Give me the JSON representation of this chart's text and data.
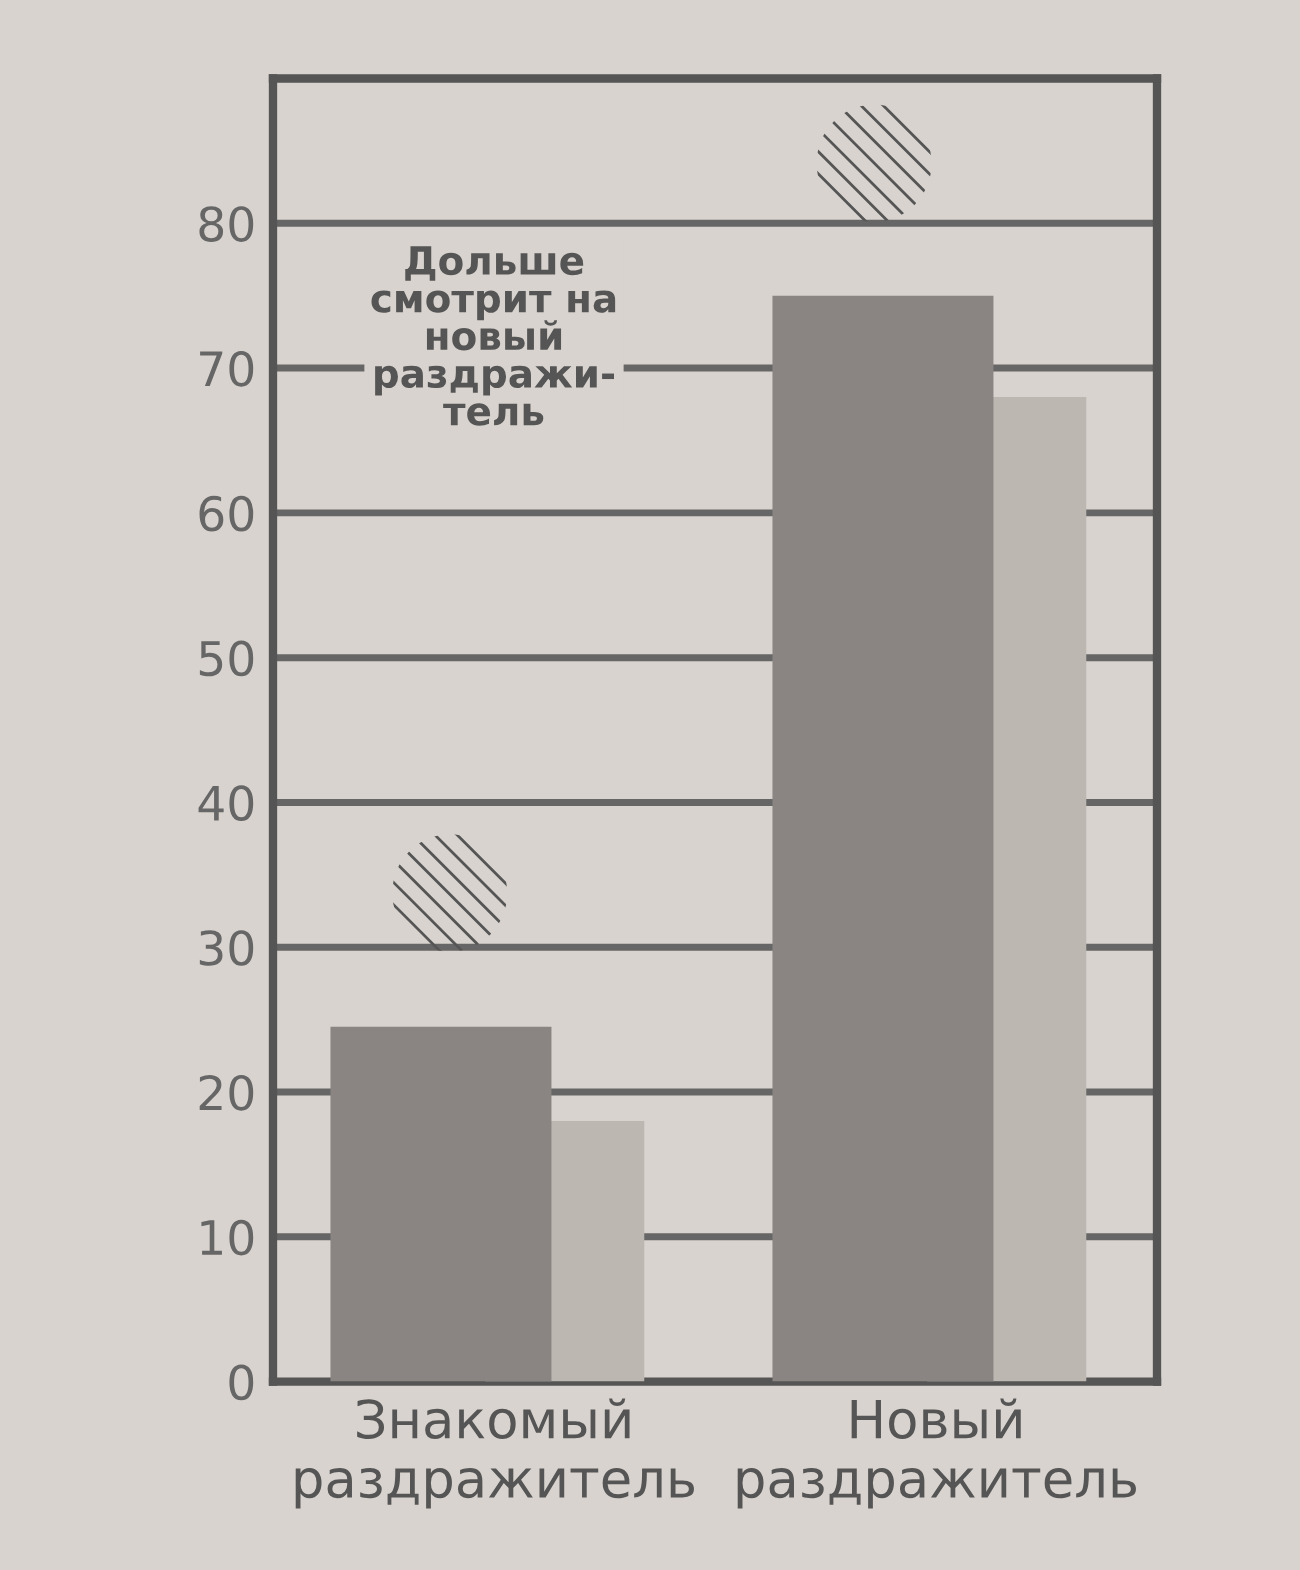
{
  "chart_data": {
    "type": "bar",
    "categories": [
      "Знакомый\nраздражитель",
      "Новый\nраздражитель"
    ],
    "series": [
      {
        "color": "#8a8582",
        "values": [
          24.5,
          75
        ]
      },
      {
        "color": "#bdb7b2",
        "values": [
          18,
          68
        ]
      }
    ],
    "ylim": [
      0,
      90
    ],
    "yticks": [
      0,
      10,
      20,
      30,
      40,
      50,
      60,
      70,
      80
    ],
    "grid": "y",
    "annotations": [
      "Дольше\nсмотрит на\nновый\nраздражи-\nтель"
    ]
  }
}
